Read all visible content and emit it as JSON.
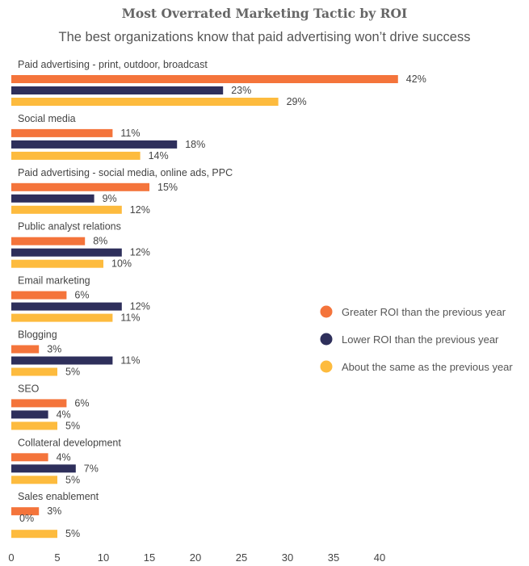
{
  "chart_data": {
    "type": "bar",
    "orientation": "horizontal",
    "title": "Most Overrated Marketing Tactic by ROI",
    "subtitle": "The best organizations know that paid advertising won’t drive success",
    "categories": [
      "Paid advertising - print, outdoor, broadcast",
      "Social media",
      "Paid advertising - social media, online ads, PPC",
      "Public analyst relations",
      "Email marketing",
      "Blogging",
      "SEO",
      "Collateral development",
      "Sales enablement"
    ],
    "series": [
      {
        "name": "Greater ROI than the previous year",
        "color": "#F4743B",
        "values": [
          42,
          11,
          15,
          8,
          6,
          3,
          6,
          4,
          3
        ],
        "labels": [
          "42%",
          "11%",
          "15%",
          "8%",
          "6%",
          "3%",
          "6%",
          "4%",
          "3%"
        ]
      },
      {
        "name": "Lower ROI than the previous year",
        "color": "#2E2F5B",
        "values": [
          23,
          18,
          9,
          12,
          12,
          11,
          4,
          7,
          0
        ],
        "labels": [
          "23%",
          "18%",
          "9%",
          "12%",
          "12%",
          "11%",
          "4%",
          "7%",
          "0%"
        ]
      },
      {
        "name": "About the same as the previous year",
        "color": "#FDBB3E",
        "values": [
          29,
          14,
          12,
          10,
          11,
          5,
          5,
          5,
          5
        ],
        "labels": [
          "29%",
          "14%",
          "12%",
          "10%",
          "11%",
          "5%",
          "5%",
          "5%",
          "5%"
        ]
      }
    ],
    "x_ticks": [
      "0",
      "5",
      "10",
      "15",
      "20",
      "25",
      "30",
      "35",
      "40"
    ],
    "xlim": [
      0,
      42
    ],
    "grid": false,
    "legend_position": "right"
  }
}
